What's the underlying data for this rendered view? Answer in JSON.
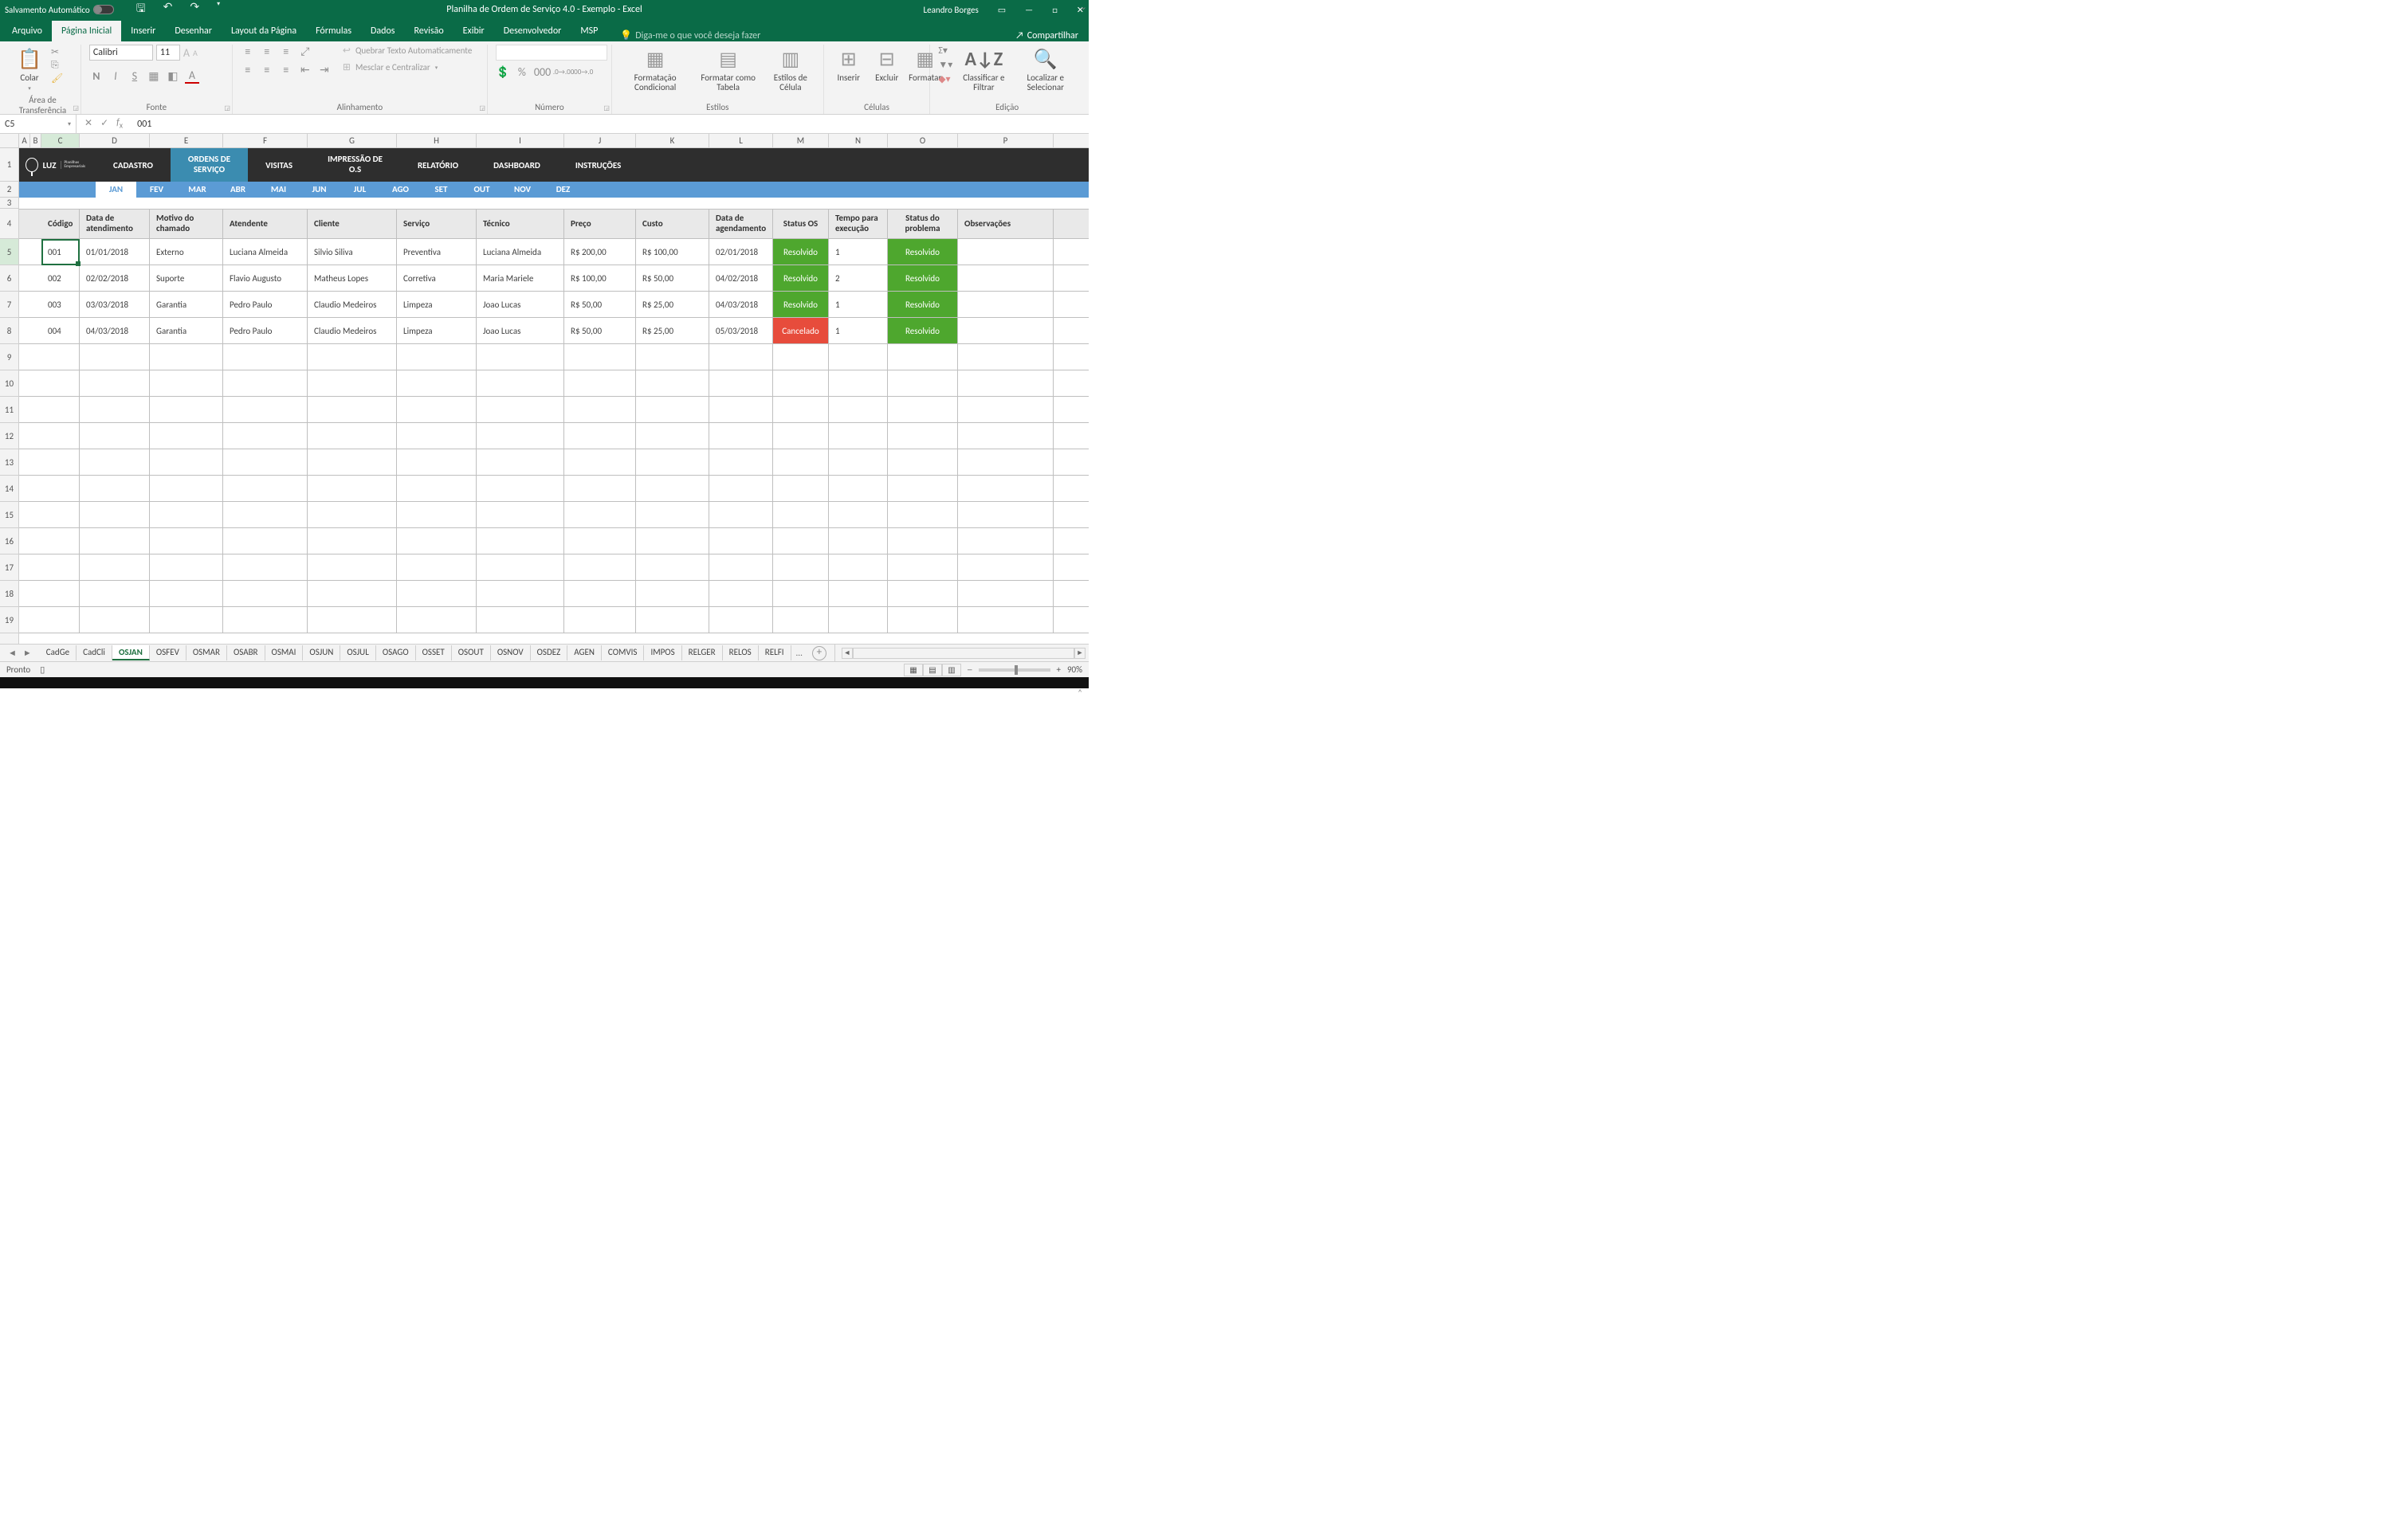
{
  "titlebar": {
    "autosave_label": "Salvamento Automático",
    "title": "Planilha de Ordem de Serviço 4.0 - Exemplo  -  Excel",
    "user": "Leandro Borges"
  },
  "menu": {
    "items": [
      "Arquivo",
      "Página Inicial",
      "Inserir",
      "Desenhar",
      "Layout da Página",
      "Fórmulas",
      "Dados",
      "Revisão",
      "Exibir",
      "Desenvolvedor",
      "MSP"
    ],
    "active": 1,
    "tellme": "Diga-me o que você deseja fazer",
    "share": "Compartilhar"
  },
  "ribbon": {
    "clipboard": {
      "paste": "Colar",
      "label": "Área de Transferência"
    },
    "font": {
      "name": "Calibri",
      "size": "11",
      "label": "Fonte"
    },
    "alignment": {
      "wrap": "Quebrar Texto Automaticamente",
      "merge": "Mesclar e Centralizar",
      "label": "Alinhamento"
    },
    "number": {
      "label": "Número"
    },
    "styles": {
      "cond": "Formatação Condicional",
      "table": "Formatar como Tabela",
      "cell": "Estilos de Célula",
      "label": "Estilos"
    },
    "cells": {
      "insert": "Inserir",
      "delete": "Excluir",
      "format": "Formatar",
      "label": "Células"
    },
    "editing": {
      "sort": "Classificar e Filtrar",
      "find": "Localizar e Selecionar",
      "label": "Edição"
    }
  },
  "formula": {
    "namebox": "C5",
    "value": "001"
  },
  "columns": [
    {
      "l": "A",
      "w": 14
    },
    {
      "l": "B",
      "w": 14
    },
    {
      "l": "C",
      "w": 48
    },
    {
      "l": "D",
      "w": 88
    },
    {
      "l": "E",
      "w": 92
    },
    {
      "l": "F",
      "w": 106
    },
    {
      "l": "G",
      "w": 112
    },
    {
      "l": "H",
      "w": 100
    },
    {
      "l": "I",
      "w": 110
    },
    {
      "l": "J",
      "w": 90
    },
    {
      "l": "K",
      "w": 92
    },
    {
      "l": "L",
      "w": 80
    },
    {
      "l": "M",
      "w": 70
    },
    {
      "l": "N",
      "w": 74
    },
    {
      "l": "O",
      "w": 88
    },
    {
      "l": "P",
      "w": 120
    }
  ],
  "nav": {
    "logo": "LUZ",
    "logo_sub": "Planilhas Empresariais",
    "items": [
      "CADASTRO",
      "ORDENS DE SERVIÇO",
      "VISITAS",
      "IMPRESSÃO DE O.S",
      "RELATÓRIO",
      "DASHBOARD",
      "INSTRUÇÕES"
    ],
    "active": 1
  },
  "months": [
    "JAN",
    "FEV",
    "MAR",
    "ABR",
    "MAI",
    "JUN",
    "JUL",
    "AGO",
    "SET",
    "OUT",
    "NOV",
    "DEZ"
  ],
  "month_active": 0,
  "headers": [
    "Código",
    "Data de atendimento",
    "Motivo do chamado",
    "Atendente",
    "Cliente",
    "Serviço",
    "Técnico",
    "Preço",
    "Custo",
    "Data de agendamento",
    "Status OS",
    "Tempo para execução",
    "Status do problema",
    "Observações"
  ],
  "rows": [
    {
      "cod": "001",
      "dat": "01/01/2018",
      "mot": "Externo",
      "ate": "Luciana Almeida",
      "cli": "Silvio Siliva",
      "ser": "Preventiva",
      "tec": "Luciana Almeida",
      "pre": "R$ 200,00",
      "cus": "R$ 100,00",
      "age": "02/01/2018",
      "sos": "Resolvido",
      "soscolor": "ok",
      "tex": "1",
      "spr": "Resolvido",
      "sprcolor": "ok",
      "obs": ""
    },
    {
      "cod": "002",
      "dat": "02/02/2018",
      "mot": "Suporte",
      "ate": "Flavio Augusto",
      "cli": "Matheus Lopes",
      "ser": "Corretiva",
      "tec": "Maria Mariele",
      "pre": "R$ 100,00",
      "cus": "R$ 50,00",
      "age": "04/02/2018",
      "sos": "Resolvido",
      "soscolor": "ok",
      "tex": "2",
      "spr": "Resolvido",
      "sprcolor": "ok",
      "obs": ""
    },
    {
      "cod": "003",
      "dat": "03/03/2018",
      "mot": "Garantia",
      "ate": "Pedro Paulo",
      "cli": "Claudio Medeiros",
      "ser": "Limpeza",
      "tec": "Joao Lucas",
      "pre": "R$ 50,00",
      "cus": "R$ 25,00",
      "age": "04/03/2018",
      "sos": "Resolvido",
      "soscolor": "ok",
      "tex": "1",
      "spr": "Resolvido",
      "sprcolor": "ok",
      "obs": ""
    },
    {
      "cod": "004",
      "dat": "04/03/2018",
      "mot": "Garantia",
      "ate": "Pedro Paulo",
      "cli": "Claudio Medeiros",
      "ser": "Limpeza",
      "tec": "Joao Lucas",
      "pre": "R$ 50,00",
      "cus": "R$ 25,00",
      "age": "05/03/2018",
      "sos": "Cancelado",
      "soscolor": "bad",
      "tex": "1",
      "spr": "Resolvido",
      "sprcolor": "ok",
      "obs": ""
    }
  ],
  "status_colors": {
    "ok": "#4ea72e",
    "bad": "#e74c3c"
  },
  "sheettabs": [
    "CadGe",
    "CadCli",
    "OSJAN",
    "OSFEV",
    "OSMAR",
    "OSABR",
    "OSMAI",
    "OSJUN",
    "OSJUL",
    "OSAGO",
    "OSSET",
    "OSOUT",
    "OSNOV",
    "OSDEZ",
    "AGEN",
    "COMVIS",
    "IMPOS",
    "RELGER",
    "RELOS",
    "RELFI"
  ],
  "sheet_active": 2,
  "statusbar": {
    "ready": "Pronto",
    "zoom": "90%"
  }
}
